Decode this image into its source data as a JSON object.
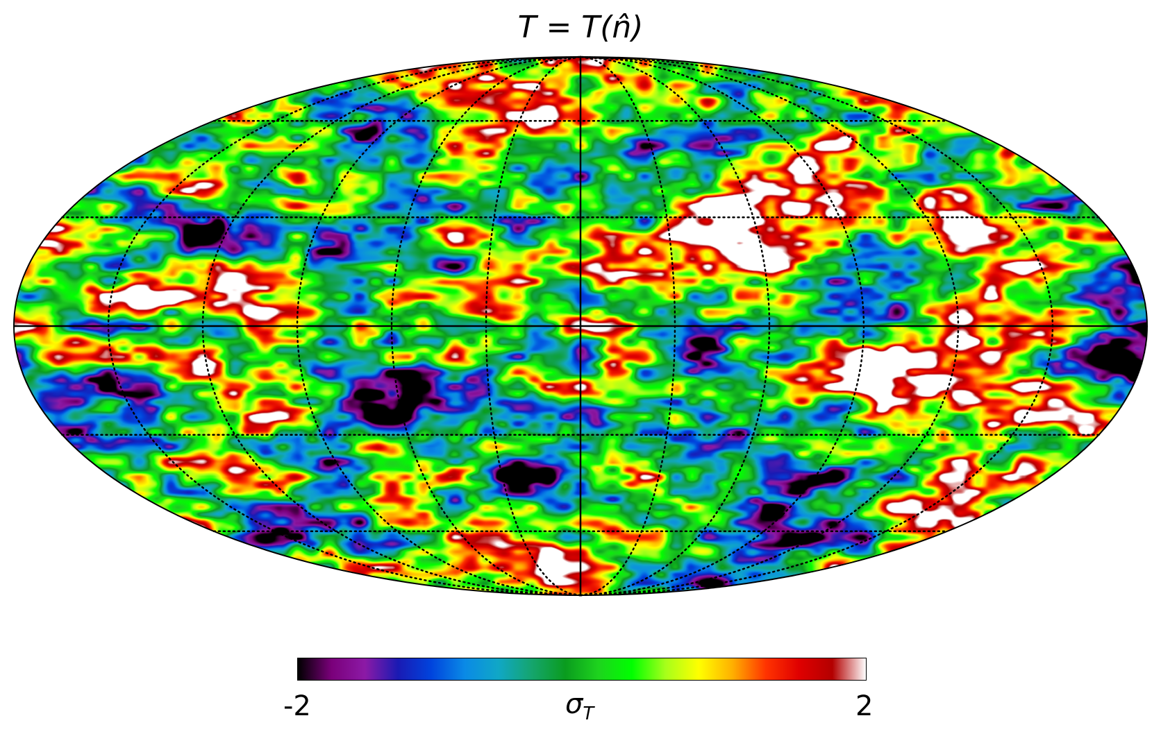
{
  "title": "T = T(n̂)",
  "colorbar": {
    "min_label": "-2",
    "max_label": "2",
    "unit_symbol": "σ",
    "unit_subscript": "T",
    "colormap": [
      "#000000",
      "#7a007a",
      "#8c1aa6",
      "#1a1ab3",
      "#0044dd",
      "#0a8ae6",
      "#10a7c6",
      "#15a56d",
      "#0a9c1e",
      "#1ed31e",
      "#00ff00",
      "#a6ff1a",
      "#ffff00",
      "#ffb000",
      "#ff3300",
      "#e00000",
      "#b30000",
      "#ffffff"
    ]
  },
  "map": {
    "projection": "Mollweide",
    "graticule": "dotted",
    "center_lines": "solid"
  }
}
